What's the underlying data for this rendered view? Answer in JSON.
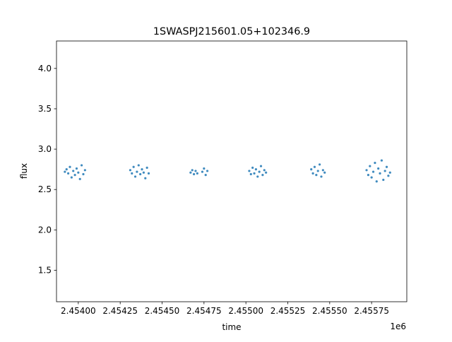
{
  "chart_data": {
    "type": "scatter",
    "title": "1SWASPJ215601.05+102346.9",
    "xlabel": "time",
    "ylabel": "flux",
    "x_offset_label": "1e6",
    "xlim": [
      2.45387,
      2.45596
    ],
    "ylim": [
      1.11,
      4.34
    ],
    "x_ticks": [
      2.454,
      2.45425,
      2.4545,
      2.45475,
      2.455,
      2.45525,
      2.4555,
      2.45575
    ],
    "x_tick_labels": [
      "2.45400",
      "2.45425",
      "2.45450",
      "2.45475",
      "2.45500",
      "2.45525",
      "2.45550",
      "2.45575"
    ],
    "y_ticks": [
      1.5,
      2.0,
      2.5,
      3.0,
      3.5,
      4.0
    ],
    "y_tick_labels": [
      "1.5",
      "2.0",
      "2.5",
      "3.0",
      "3.5",
      "4.0"
    ],
    "grid": false,
    "point_color": "#1f77b4",
    "series": [
      {
        "x": [
          2.45392,
          2.45393,
          2.45394,
          2.45395,
          2.45396,
          2.45397,
          2.45398,
          2.45399,
          2.454,
          2.45401,
          2.45402,
          2.45403,
          2.45404
        ],
        "y": [
          2.72,
          2.75,
          2.7,
          2.78,
          2.65,
          2.73,
          2.68,
          2.76,
          2.71,
          2.63,
          2.8,
          2.69,
          2.74
        ]
      },
      {
        "x": [
          2.45431,
          2.45432,
          2.45433,
          2.45434,
          2.45435,
          2.45436,
          2.45437,
          2.45438,
          2.45439,
          2.4544,
          2.45441,
          2.45442
        ],
        "y": [
          2.74,
          2.7,
          2.78,
          2.66,
          2.72,
          2.8,
          2.69,
          2.75,
          2.71,
          2.64,
          2.77,
          2.7
        ]
      },
      {
        "x": [
          2.45467,
          2.45468,
          2.45469,
          2.4547,
          2.45471
        ],
        "y": [
          2.71,
          2.74,
          2.69,
          2.73,
          2.7
        ]
      },
      {
        "x": [
          2.45474,
          2.45475,
          2.45476,
          2.45477
        ],
        "y": [
          2.72,
          2.76,
          2.68,
          2.73
        ]
      },
      {
        "x": [
          2.45502,
          2.45503,
          2.45504,
          2.45505,
          2.45506,
          2.45507,
          2.45508,
          2.45509,
          2.4551,
          2.45511,
          2.45512
        ],
        "y": [
          2.73,
          2.69,
          2.77,
          2.7,
          2.75,
          2.66,
          2.72,
          2.79,
          2.68,
          2.74,
          2.71
        ]
      },
      {
        "x": [
          2.45539,
          2.4554,
          2.45541,
          2.45542,
          2.45543,
          2.45544,
          2.45545,
          2.45546,
          2.45547
        ],
        "y": [
          2.75,
          2.7,
          2.78,
          2.68,
          2.73,
          2.81,
          2.66,
          2.74,
          2.71
        ]
      },
      {
        "x": [
          2.45572,
          2.45573,
          2.45574,
          2.45575,
          2.45576,
          2.45577,
          2.45578,
          2.45579,
          2.4558,
          2.45581,
          2.45582,
          2.45583,
          2.45584,
          2.45585,
          2.45586
        ],
        "y": [
          2.74,
          2.68,
          2.79,
          2.65,
          2.72,
          2.83,
          2.6,
          2.76,
          2.7,
          2.86,
          2.62,
          2.73,
          2.78,
          2.67,
          2.71
        ]
      }
    ]
  }
}
